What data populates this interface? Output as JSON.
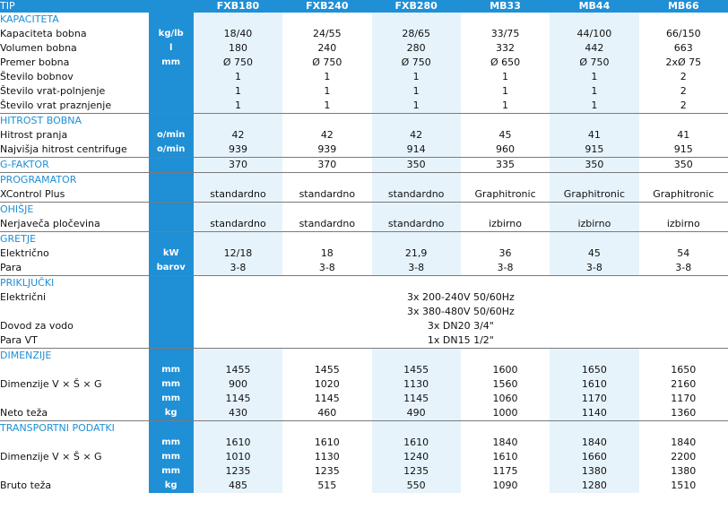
{
  "header": {
    "label": "TIP",
    "models": [
      "FXB180",
      "FXB240",
      "FXB280",
      "MB33",
      "MB44",
      "MB66"
    ]
  },
  "kapaciteta": {
    "title": "KAPACITETA",
    "rows": [
      {
        "label": "Kapaciteta bobna",
        "unit": "kg/lb",
        "values": [
          "18/40",
          "24/55",
          "28/65",
          "33/75",
          "44/100",
          "66/150"
        ]
      },
      {
        "label": "Volumen bobna",
        "unit": "l",
        "values": [
          "180",
          "240",
          "280",
          "332",
          "442",
          "663"
        ]
      },
      {
        "label": "Premer bobna",
        "unit": "mm",
        "values": [
          "Ø 750",
          "Ø 750",
          "Ø 750",
          "Ø 650",
          "Ø 750",
          "2xØ 75"
        ]
      },
      {
        "label": "Število bobnov",
        "unit": "",
        "values": [
          "1",
          "1",
          "1",
          "1",
          "1",
          "2"
        ]
      },
      {
        "label": "Število vrat-polnjenje",
        "unit": "",
        "values": [
          "1",
          "1",
          "1",
          "1",
          "1",
          "2"
        ]
      },
      {
        "label": "Število vrat praznjenje",
        "unit": "",
        "values": [
          "1",
          "1",
          "1",
          "1",
          "1",
          "2"
        ]
      }
    ]
  },
  "hitrost": {
    "title": "HITROST BOBNA",
    "rows": [
      {
        "label": "Hitrost pranja",
        "unit": "o/min",
        "values": [
          "42",
          "42",
          "42",
          "45",
          "41",
          "41"
        ]
      },
      {
        "label": "Najvišja hitrost centrifuge",
        "unit": "o/min",
        "values": [
          "939",
          "939",
          "914",
          "960",
          "915",
          "915"
        ]
      }
    ]
  },
  "gfaktor": {
    "title": "G-FAKTOR",
    "values": [
      "370",
      "370",
      "350",
      "335",
      "350",
      "350"
    ]
  },
  "programator": {
    "title": "PROGRAMATOR",
    "label": "XControl Plus",
    "values": [
      "standardno",
      "standardno",
      "standardno",
      "Graphitronic",
      "Graphitronic",
      "Graphitronic"
    ]
  },
  "ohisje": {
    "title": "OHIŠJE",
    "label": "Nerjaveča pločevina",
    "values": [
      "standardno",
      "standardno",
      "standardno",
      "izbirno",
      "izbirno",
      "izbirno"
    ]
  },
  "gretje": {
    "title": "GRETJE",
    "rows": [
      {
        "label": "Električno",
        "unit": "kW",
        "values": [
          "12/18",
          "18",
          "21,9",
          "36",
          "45",
          "54"
        ]
      },
      {
        "label": "Para",
        "unit": "barov",
        "values": [
          "3-8",
          "3-8",
          "3-8",
          "3-8",
          "3-8",
          "3-8"
        ]
      }
    ]
  },
  "prikljucki": {
    "title": "PRIKLJUČKI",
    "elektricni_label": "Električni",
    "elektricni_values": [
      "3x 200-240V 50/60Hz",
      "3x 380-480V 50/60Hz"
    ],
    "vodo_label": "Dovod za vodo",
    "vodo_value": "3x DN20 3/4\"",
    "para_label": "Para VT",
    "para_value": "1x DN15 1/2\""
  },
  "dimenzije": {
    "title": "DIMENZIJE",
    "dim_label": "Dimenzije V × Š × G",
    "teza_label": "Neto teža",
    "rows": [
      {
        "unit": "mm",
        "values": [
          "1455",
          "1455",
          "1455",
          "1600",
          "1650",
          "1650"
        ]
      },
      {
        "unit": "mm",
        "values": [
          "900",
          "1020",
          "1130",
          "1560",
          "1610",
          "2160"
        ]
      },
      {
        "unit": "mm",
        "values": [
          "1145",
          "1145",
          "1145",
          "1060",
          "1170",
          "1170"
        ]
      },
      {
        "unit": "kg",
        "values": [
          "430",
          "460",
          "490",
          "1000",
          "1140",
          "1360"
        ]
      }
    ]
  },
  "transport": {
    "title": "TRANSPORTNI PODATKI",
    "dim_label": "Dimenzije V × Š × G",
    "teza_label": "Bruto teža",
    "rows": [
      {
        "unit": "mm",
        "values": [
          "1610",
          "1610",
          "1610",
          "1840",
          "1840",
          "1840"
        ]
      },
      {
        "unit": "mm",
        "values": [
          "1010",
          "1130",
          "1240",
          "1610",
          "1660",
          "2200"
        ]
      },
      {
        "unit": "mm",
        "values": [
          "1235",
          "1235",
          "1235",
          "1175",
          "1380",
          "1380"
        ]
      },
      {
        "unit": "kg",
        "values": [
          "485",
          "515",
          "550",
          "1090",
          "1280",
          "1510"
        ]
      }
    ]
  }
}
